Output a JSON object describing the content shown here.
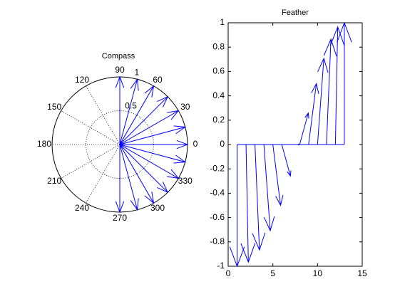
{
  "chart_data": [
    {
      "type": "compass",
      "title": "Compass",
      "color": "#0000ff",
      "theta": [
        -90,
        -75,
        -60,
        -45,
        -30,
        -15,
        0,
        15,
        30,
        45,
        60,
        75,
        90
      ],
      "r": [
        1,
        1,
        1,
        1,
        1,
        1,
        1,
        1,
        1,
        1,
        1,
        1,
        1
      ],
      "rlim": [
        0,
        1
      ],
      "rticks": [
        0.5,
        1
      ],
      "thetaticks": [
        0,
        30,
        60,
        90,
        120,
        150,
        180,
        210,
        240,
        270,
        300,
        330
      ]
    },
    {
      "type": "feather",
      "title": "Feather",
      "color": "#0000ff",
      "x": [
        1,
        2,
        3,
        4,
        5,
        6,
        7,
        8,
        9,
        10,
        11,
        12,
        13
      ],
      "u": [
        0,
        0.259,
        0.5,
        0.707,
        0.866,
        0.966,
        1,
        0.966,
        0.866,
        0.707,
        0.5,
        0.259,
        0
      ],
      "v": [
        -1,
        -0.966,
        -0.866,
        -0.707,
        -0.5,
        -0.259,
        0,
        0.259,
        0.5,
        0.707,
        0.866,
        0.966,
        1
      ],
      "xlim": [
        0,
        15
      ],
      "xticks": [
        0,
        5,
        10,
        15
      ],
      "ylim": [
        -1,
        1
      ],
      "yticks": [
        -1,
        -0.8,
        -0.6,
        -0.4,
        -0.2,
        0,
        0.2,
        0.4,
        0.6,
        0.8,
        1
      ]
    }
  ]
}
